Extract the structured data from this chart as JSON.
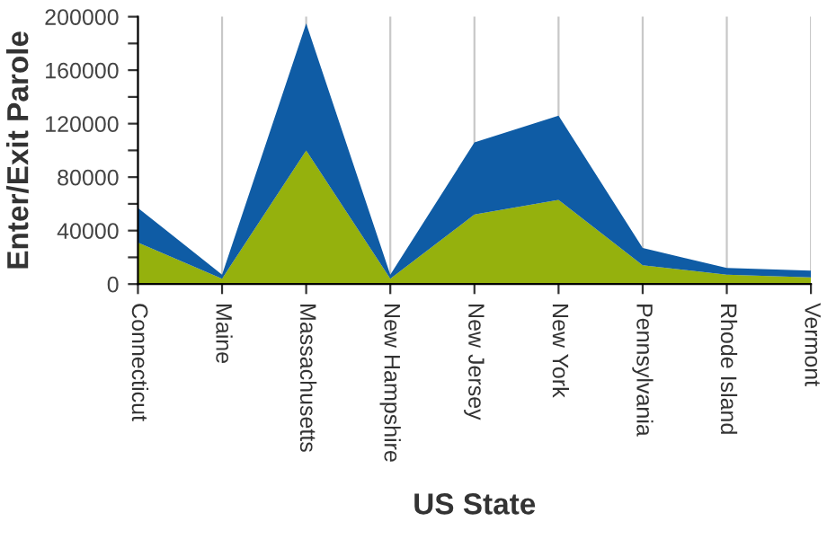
{
  "chart_data": {
    "type": "area",
    "stacked": true,
    "xlabel": "US State",
    "ylabel": "Enter/Exit Parole",
    "categories": [
      "Connecticut",
      "Maine",
      "Massachusetts",
      "New Hampshire",
      "New Jersey",
      "New York",
      "Pennsylvania",
      "Rhode Island",
      "Vermont"
    ],
    "series": [
      {
        "color": "#95b10d",
        "values": [
          31000,
          4000,
          100000,
          4000,
          52000,
          63000,
          14000,
          7000,
          5000
        ]
      },
      {
        "color": "#0f5ca5",
        "values": [
          26000,
          3000,
          95000,
          3000,
          54000,
          63000,
          13000,
          5000,
          5000
        ]
      }
    ],
    "ylim": [
      0,
      200000
    ],
    "yticks": [
      0,
      {
        "value": 20000,
        "label": null
      },
      40000,
      {
        "value": 60000,
        "label": null
      },
      80000,
      {
        "value": 100000,
        "label": null
      },
      120000,
      {
        "value": 140000,
        "label": null
      },
      160000,
      {
        "value": 180000,
        "label": null
      },
      200000
    ],
    "grid": "x"
  }
}
